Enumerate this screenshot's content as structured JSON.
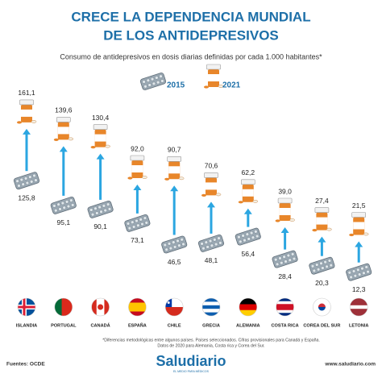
{
  "chart_data": {
    "type": "dumbbell",
    "title": [
      "CRECE LA DEPENDENCIA MUNDIAL",
      "DE LOS ANTIDEPRESIVOS"
    ],
    "subtitle": "Consumo de antidepresivos en dosis diarias definidas por cada 1.000 habitantes*",
    "categories": [
      "ISLANDIA",
      "PORTUGAL",
      "CANADÁ",
      "ESPAÑA",
      "CHILE",
      "GRECIA",
      "ALEMANIA",
      "COSTA RICA",
      "COREA DEL SUR",
      "LETONIA"
    ],
    "series": [
      {
        "name": "2015",
        "color": "#9aa8b3",
        "values": [
          125.8,
          95.1,
          90.1,
          73.1,
          46.5,
          48.1,
          56.4,
          28.4,
          20.3,
          12.3
        ],
        "value_labels": [
          "125,8",
          "95,1",
          "90,1",
          "73,1",
          "46,5",
          "48,1",
          "56,4",
          "28,4",
          "20,3",
          "12,3"
        ]
      },
      {
        "name": "2021",
        "color": "#e8862a",
        "values": [
          161.1,
          139.6,
          130.4,
          92.0,
          90.7,
          70.6,
          62.2,
          39.0,
          27.4,
          21.5
        ],
        "value_labels": [
          "161,1",
          "139,6",
          "130,4",
          "92,0",
          "90,7",
          "70,6",
          "62,2",
          "39,0",
          "27,4",
          "21,5"
        ]
      }
    ],
    "arrow_color": "#2ba6e1",
    "footnote": [
      "*Diferencias metodológicas entre algunos países. Países seleccionados. Cifras provisionales para Canadá y España.",
      "Datos de 2020 para Alemania, Costa rica y Corea del Sur."
    ],
    "source": "Fuentes: OCDE",
    "brand": "Saludiario",
    "brand_tagline": "EL MEDIO PARA MÉDICOS",
    "website": "www.saludiario.com"
  }
}
